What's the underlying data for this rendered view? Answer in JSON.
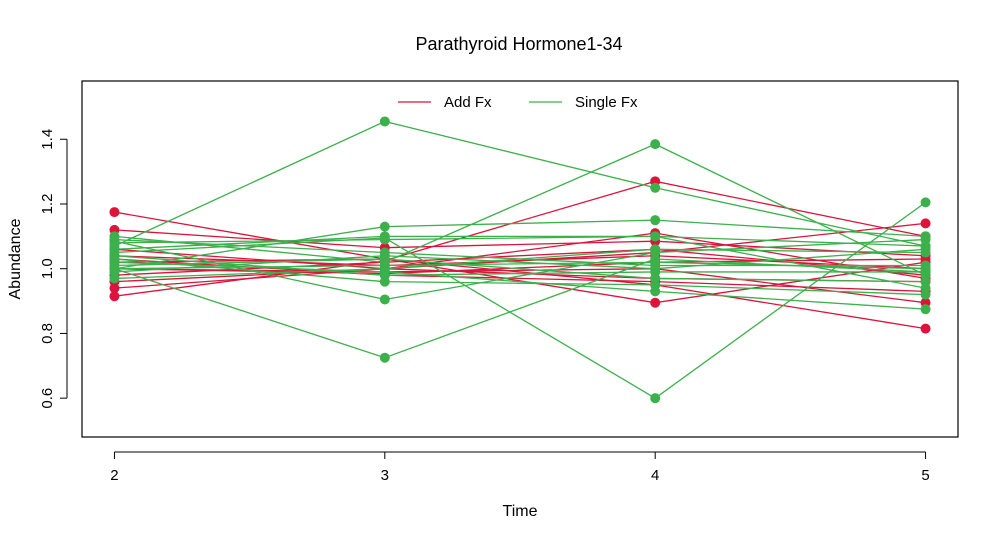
{
  "chart_data": {
    "type": "line",
    "title": "Parathyroid Hormone1-34",
    "xlabel": "Time",
    "ylabel": "Abundance",
    "x": [
      2,
      3,
      4,
      5
    ],
    "x_tick_labels": [
      "2",
      "3",
      "4",
      "5"
    ],
    "y_ticks": [
      0.6,
      0.8,
      1.0,
      1.2,
      1.4
    ],
    "y_tick_labels": [
      "0.6",
      "0.8",
      "1.0",
      "1.2",
      "1.4"
    ],
    "xlim": [
      1.88,
      5.12
    ],
    "ylim": [
      0.48,
      1.58
    ],
    "grid": false,
    "legend_position": "top-center",
    "colors": {
      "add": "#dc143c",
      "single": "#3cb04b"
    },
    "legend": [
      {
        "label": "Add Fx",
        "color": "#dc143c"
      },
      {
        "label": "Single Fx",
        "color": "#3cb04b"
      }
    ],
    "series": [
      {
        "group": "Add Fx",
        "values": [
          1.175,
          1.03,
          0.895,
          1.02
        ]
      },
      {
        "group": "Add Fx",
        "values": [
          1.12,
          1.065,
          1.085,
          1.04
        ]
      },
      {
        "group": "Add Fx",
        "values": [
          0.915,
          1.025,
          1.27,
          1.1
        ]
      },
      {
        "group": "Add Fx",
        "values": [
          0.94,
          1.0,
          1.05,
          1.14
        ]
      },
      {
        "group": "Add Fx",
        "values": [
          1.02,
          1.03,
          0.95,
          0.815
        ]
      },
      {
        "group": "Add Fx",
        "values": [
          1.0,
          0.99,
          1.0,
          0.895
        ]
      },
      {
        "group": "Add Fx",
        "values": [
          1.04,
          1.01,
          1.04,
          1.0
        ]
      },
      {
        "group": "Add Fx",
        "values": [
          0.98,
          1.02,
          1.06,
          0.98
        ]
      },
      {
        "group": "Add Fx",
        "values": [
          1.06,
          1.0,
          0.97,
          0.96
        ]
      },
      {
        "group": "Add Fx",
        "values": [
          1.0,
          0.985,
          1.02,
          1.03
        ]
      },
      {
        "group": "Add Fx",
        "values": [
          0.96,
          1.0,
          1.11,
          0.97
        ]
      },
      {
        "group": "Add Fx",
        "values": [
          1.03,
          0.98,
          0.96,
          0.93
        ]
      },
      {
        "group": "Single Fx",
        "values": [
          1.07,
          1.455,
          1.25,
          1.07
        ]
      },
      {
        "group": "Single Fx",
        "values": [
          1.0,
          0.725,
          1.03,
          0.99
        ]
      },
      {
        "group": "Single Fx",
        "values": [
          1.1,
          1.02,
          1.385,
          0.98
        ]
      },
      {
        "group": "Single Fx",
        "values": [
          1.05,
          1.095,
          0.6,
          1.205
        ]
      },
      {
        "group": "Single Fx",
        "values": [
          1.085,
          0.905,
          1.05,
          1.09
        ]
      },
      {
        "group": "Single Fx",
        "values": [
          1.0,
          1.13,
          1.15,
          1.1
        ]
      },
      {
        "group": "Single Fx",
        "values": [
          1.06,
          1.1,
          1.1,
          0.94
        ]
      },
      {
        "group": "Single Fx",
        "values": [
          1.02,
          0.99,
          0.93,
          0.875
        ]
      },
      {
        "group": "Single Fx",
        "values": [
          0.99,
          1.04,
          1.0,
          1.06
        ]
      },
      {
        "group": "Single Fx",
        "values": [
          1.03,
          0.96,
          0.95,
          0.92
        ]
      },
      {
        "group": "Single Fx",
        "values": [
          1.08,
          1.09,
          1.1,
          1.07
        ]
      },
      {
        "group": "Single Fx",
        "values": [
          1.0,
          1.01,
          1.02,
          1.0
        ]
      },
      {
        "group": "Single Fx",
        "values": [
          0.97,
          1.0,
          1.06,
          1.05
        ]
      },
      {
        "group": "Single Fx",
        "values": [
          1.04,
          0.98,
          0.99,
          0.99
        ]
      },
      {
        "group": "Single Fx",
        "values": [
          1.01,
          1.03,
          0.97,
          0.96
        ]
      },
      {
        "group": "Single Fx",
        "values": [
          1.09,
          1.05,
          1.01,
          1.01
        ]
      }
    ]
  }
}
